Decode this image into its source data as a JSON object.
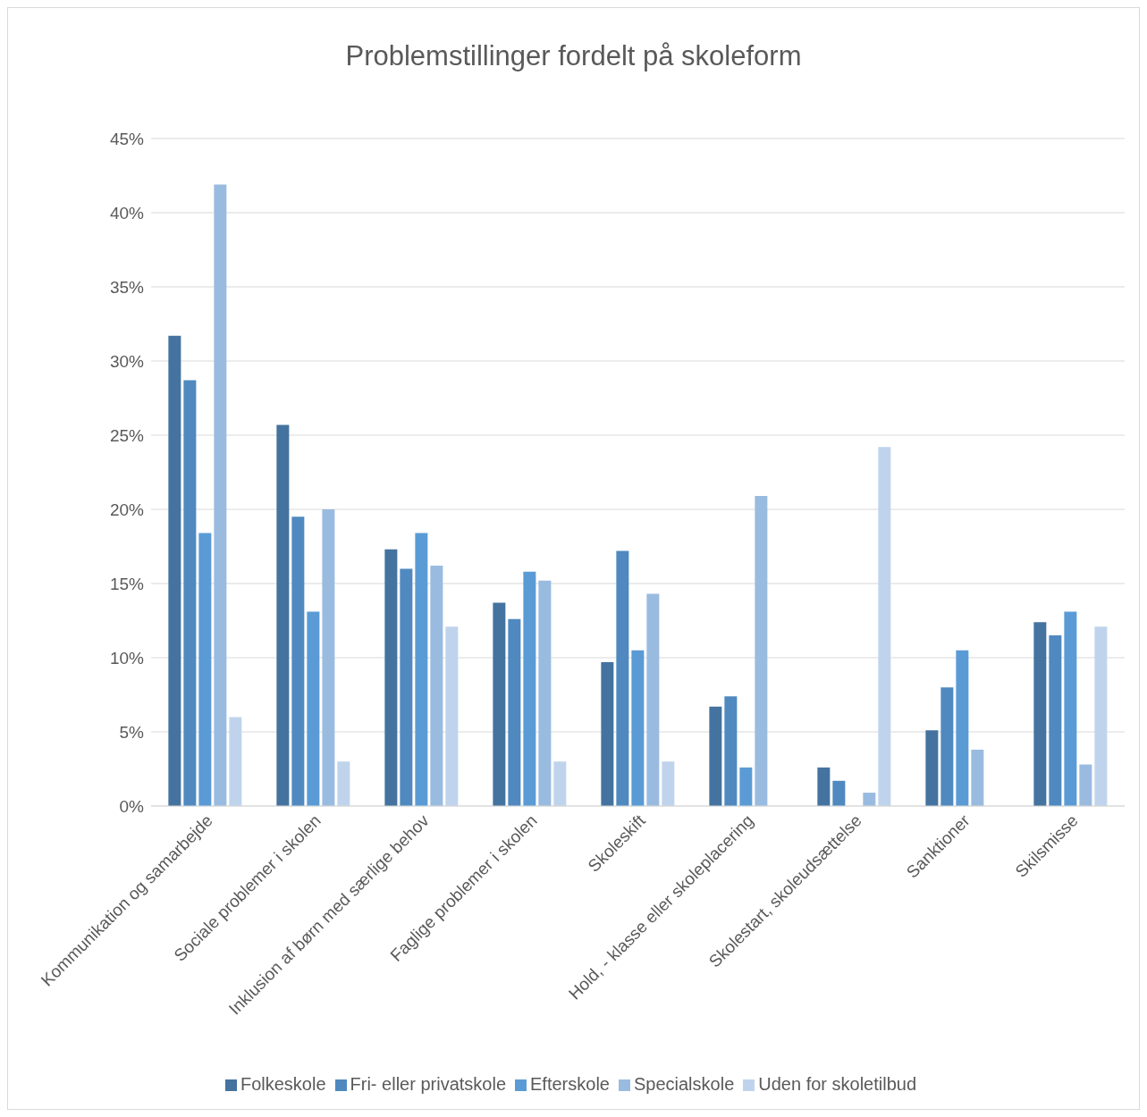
{
  "chart_data": {
    "type": "bar",
    "title": "Problemstillinger fordelt på skoleform",
    "categories": [
      "Kommunikation og samarbejde",
      "Sociale problemer i skolen",
      "Inklusion af børn med særlige behov",
      "Faglige problemer i skolen",
      "Skoleskift",
      "Hold, - klasse eller skoleplacering",
      "Skolestart, skoleudsættelse",
      "Sanktioner",
      "Skilsmisse"
    ],
    "series": [
      {
        "name": "Folkeskole",
        "color": "#44739f",
        "values": [
          31.7,
          25.7,
          17.3,
          13.7,
          9.7,
          6.7,
          2.6,
          5.1,
          12.4
        ]
      },
      {
        "name": "Fri- eller privatskole",
        "color": "#4f89bf",
        "values": [
          28.7,
          19.5,
          16.0,
          12.6,
          17.2,
          7.4,
          1.7,
          8.0,
          11.5
        ]
      },
      {
        "name": "Efterskole",
        "color": "#5b9bd5",
        "values": [
          18.4,
          13.1,
          18.4,
          15.8,
          10.5,
          2.6,
          null,
          10.5,
          13.1
        ]
      },
      {
        "name": "Specialskole",
        "color": "#9abbe0",
        "values": [
          41.9,
          20.0,
          16.2,
          15.2,
          14.3,
          20.9,
          0.9,
          3.8,
          2.8
        ]
      },
      {
        "name": "Uden for skoletilbud",
        "color": "#bfd4ec",
        "values": [
          6.0,
          3.0,
          12.1,
          3.0,
          3.0,
          null,
          24.2,
          null,
          12.1
        ]
      }
    ],
    "ylim": [
      0,
      45
    ],
    "yticks": [
      {
        "value": 0,
        "label": "0%"
      },
      {
        "value": 5,
        "label": "5%"
      },
      {
        "value": 10,
        "label": "10%"
      },
      {
        "value": 15,
        "label": "15%"
      },
      {
        "value": 20,
        "label": "20%"
      },
      {
        "value": 25,
        "label": "25%"
      },
      {
        "value": 30,
        "label": "30%"
      },
      {
        "value": 35,
        "label": "35%"
      },
      {
        "value": 40,
        "label": "40%"
      },
      {
        "value": 45,
        "label": "45%"
      }
    ],
    "grid": "y",
    "legend": "bottom"
  }
}
